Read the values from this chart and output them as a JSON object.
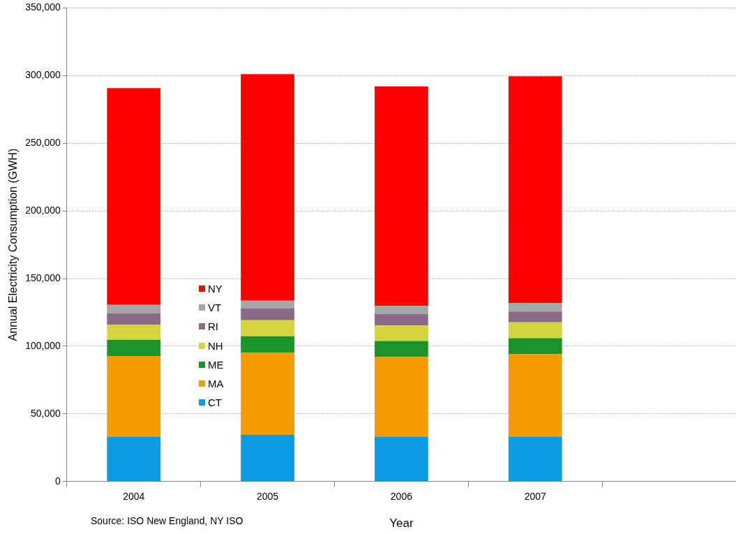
{
  "chart_data": {
    "type": "bar",
    "stacked": true,
    "xlabel": "Year",
    "ylabel": "Annual Electricity Consumption (GWH)",
    "categories": [
      "2004",
      "2005",
      "2006",
      "2007",
      null
    ],
    "series": [
      {
        "name": "CT",
        "color": "#0a9be0",
        "values": [
          33200,
          34500,
          33200,
          33200,
          null
        ]
      },
      {
        "name": "MA",
        "color": "#f59a00",
        "values": [
          59500,
          60600,
          58800,
          60900,
          null
        ]
      },
      {
        "name": "ME",
        "color": "#1a9329",
        "values": [
          12000,
          12200,
          11800,
          11800,
          null
        ]
      },
      {
        "name": "NH",
        "color": "#d4d43f",
        "values": [
          11300,
          11900,
          11500,
          11800,
          null
        ]
      },
      {
        "name": "RI",
        "color": "#8b6a88",
        "values": [
          8200,
          8600,
          8400,
          8000,
          null
        ]
      },
      {
        "name": "VT",
        "color": "#a6a6a6",
        "values": [
          6300,
          5800,
          6100,
          6300,
          null
        ]
      },
      {
        "name": "NY",
        "color": "#ff0000",
        "values": [
          160300,
          167500,
          162200,
          167500,
          null
        ]
      }
    ],
    "ylim": [
      0,
      350000
    ],
    "yticks": [
      0,
      {
        "value": 50000,
        "label": "50,000"
      },
      {
        "value": 100000,
        "label": "100,000"
      },
      {
        "value": 150000,
        "label": "150,000"
      },
      {
        "value": 200000,
        "label": "200,000"
      },
      {
        "value": 250000,
        "label": "250,000"
      },
      {
        "value": 300000,
        "label": "300,000"
      },
      {
        "value": 350000,
        "label": "350,000"
      }
    ],
    "grid": "y",
    "legend": "left",
    "annotations": [
      "Source: ISO New England, NY ISO"
    ]
  }
}
